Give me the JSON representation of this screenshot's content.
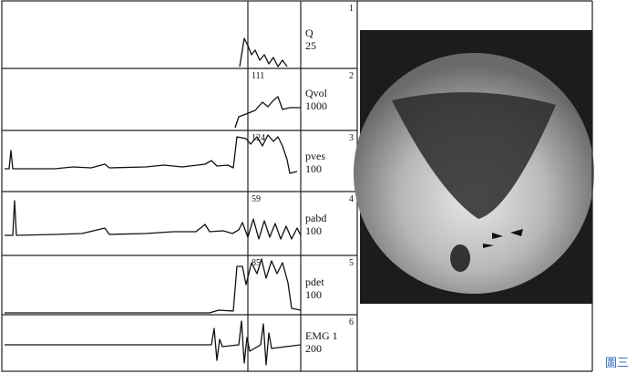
{
  "channels": [
    {
      "index": "1",
      "name": "Q",
      "scale": "25"
    },
    {
      "index": "2",
      "name": "Qvol",
      "scale": "1000",
      "peak": "111"
    },
    {
      "index": "3",
      "name": "pves",
      "scale": "100",
      "peak": "124"
    },
    {
      "index": "4",
      "name": "pabd",
      "scale": "100",
      "peak": "59"
    },
    {
      "index": "5",
      "name": "pdet",
      "scale": "100",
      "peak": "85"
    },
    {
      "index": "6",
      "name": "EMG 1",
      "scale": "200"
    }
  ],
  "caption": "圖三"
}
